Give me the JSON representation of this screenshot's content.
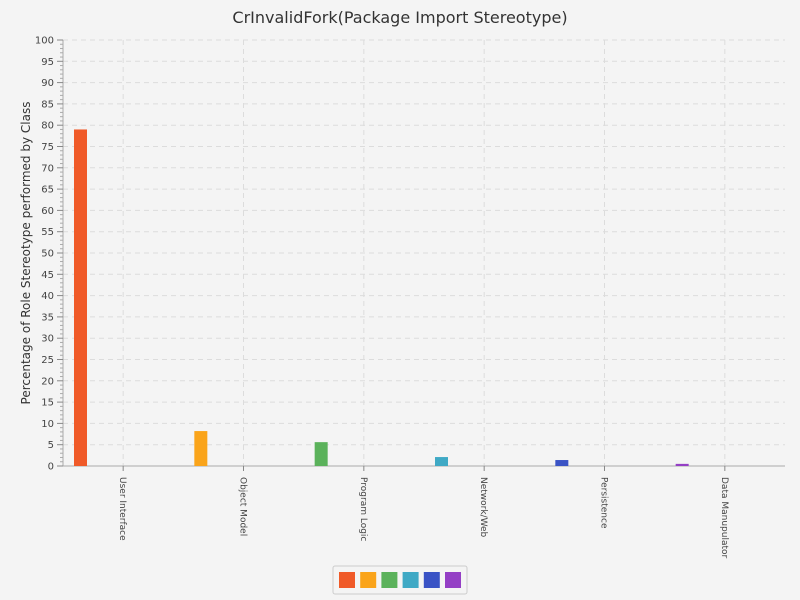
{
  "chart_data": {
    "type": "bar",
    "title": "CrInvalidFork(Package Import Stereotype)",
    "xlabel": "",
    "ylabel": "Percentage of Role Stereotype performed by Class",
    "ylim": [
      0,
      100
    ],
    "y_major_step": 5,
    "y_minor_step": 1,
    "grid": true,
    "legend_position": "bottom",
    "categories": [
      "User Interface",
      "Object Model",
      "Program Logic",
      "Network/Web",
      "Persistence",
      "Data Manupulator"
    ],
    "values": [
      79,
      8.2,
      5.6,
      2.1,
      1.4,
      0.5
    ],
    "colors": [
      "#f05a28",
      "#faa41a",
      "#5bb25b",
      "#3fa9c5",
      "#3a53c5",
      "#943fc5"
    ]
  }
}
